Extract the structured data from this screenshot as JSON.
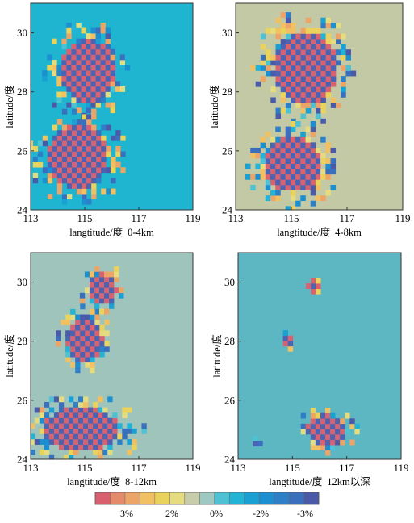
{
  "chart_data": [
    {
      "type": "heatmap",
      "title": "",
      "xlabel": "langtitude/度",
      "layer_label": "0-4km",
      "ylabel": "latitude/度",
      "xlim": [
        113,
        119
      ],
      "ylim": [
        24,
        31
      ],
      "x_ticks": [
        113,
        115,
        117,
        119
      ],
      "y_ticks": [
        24,
        26,
        28,
        30
      ],
      "background": "#1fb4cf",
      "anomaly_regions": [
        {
          "lon": [
            113.9,
            116.3
          ],
          "lat": [
            27.4,
            30.0
          ],
          "pattern": "checker",
          "value_range": [
            -3,
            3
          ]
        },
        {
          "lon": [
            113.4,
            116.1
          ],
          "lat": [
            24.5,
            27.1
          ],
          "pattern": "checker",
          "value_range": [
            -3,
            3
          ]
        }
      ]
    },
    {
      "type": "heatmap",
      "title": "",
      "xlabel": "langtitude/度",
      "layer_label": "4-8km",
      "ylabel": "latitude/度",
      "xlim": [
        113,
        119
      ],
      "ylim": [
        24,
        31
      ],
      "x_ticks": [
        113,
        115,
        117,
        119
      ],
      "y_ticks": [
        24,
        26,
        28,
        30
      ],
      "background": "#c3c9a5",
      "anomaly_regions": [
        {
          "lon": [
            114.1,
            116.9
          ],
          "lat": [
            27.3,
            30.3
          ],
          "pattern": "checker",
          "value_range": [
            -3,
            3
          ]
        },
        {
          "lon": [
            113.8,
            116.3
          ],
          "lat": [
            24.4,
            26.7
          ],
          "pattern": "checker",
          "value_range": [
            -3,
            3
          ]
        }
      ]
    },
    {
      "type": "heatmap",
      "title": "",
      "xlabel": "langtitude/度",
      "layer_label": "8-12km",
      "ylabel": "latitude/度",
      "xlim": [
        113,
        119
      ],
      "ylim": [
        24,
        31
      ],
      "x_ticks": [
        113,
        115,
        117,
        119
      ],
      "y_ticks": [
        24,
        26,
        28,
        30
      ],
      "background": "#9fc4bc",
      "anomaly_regions": [
        {
          "lon": [
            115.0,
            116.3
          ],
          "lat": [
            29.1,
            30.4
          ],
          "pattern": "checker",
          "value_range": [
            -3,
            3
          ]
        },
        {
          "lon": [
            114.2,
            115.8
          ],
          "lat": [
            27.2,
            28.9
          ],
          "pattern": "checker",
          "value_range": [
            -3,
            3
          ]
        },
        {
          "lon": [
            113.1,
            116.6
          ],
          "lat": [
            24.1,
            25.9
          ],
          "pattern": "checker",
          "value_range": [
            -3,
            3
          ]
        }
      ]
    },
    {
      "type": "heatmap",
      "title": "",
      "xlabel": "langtitude/度",
      "layer_label": "12km以深",
      "ylabel": "latitude/度",
      "xlim": [
        113,
        119
      ],
      "ylim": [
        24,
        31
      ],
      "x_ticks": [
        113,
        115,
        117,
        119
      ],
      "y_ticks": [
        24,
        26,
        28,
        30
      ],
      "background": "#5cb7c3",
      "anomaly_regions": [
        {
          "lon": [
            115.5,
            116.0
          ],
          "lat": [
            29.6,
            30.1
          ],
          "pattern": "checker",
          "value_range": [
            -3,
            3
          ]
        },
        {
          "lon": [
            114.7,
            115.0
          ],
          "lat": [
            27.7,
            28.4
          ],
          "pattern": "checker",
          "value_range": [
            -3,
            3
          ]
        },
        {
          "lon": [
            115.4,
            117.1
          ],
          "lat": [
            24.4,
            25.6
          ],
          "pattern": "checker",
          "value_range": [
            -3,
            3
          ]
        },
        {
          "lon": [
            113.5,
            113.8
          ],
          "lat": [
            24.4,
            24.7
          ],
          "pattern": "checker",
          "value_range": [
            -3,
            3
          ]
        }
      ]
    }
  ],
  "colorbar": {
    "ticks": [
      "3%",
      "2%",
      "0%",
      "-2%",
      "-3%"
    ],
    "colors": [
      "#d8606e",
      "#e58a6a",
      "#eda467",
      "#f0c063",
      "#ead35c",
      "#e4dc7e",
      "#c7ccab",
      "#9ec9c2",
      "#4ec2d2",
      "#22b3d7",
      "#1aa0d3",
      "#1b8fd0",
      "#2d7fc7",
      "#3a6fbd",
      "#4a5aa8"
    ]
  }
}
